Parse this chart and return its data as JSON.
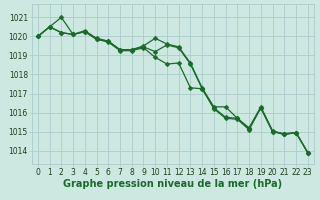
{
  "bg_color": "#cce8e0",
  "grid_color": "#aacccc",
  "line_color": "#1a6b2a",
  "marker_color": "#1a6b2a",
  "xlim": [
    -0.5,
    23.5
  ],
  "ylim": [
    1013.3,
    1021.7
  ],
  "yticks": [
    1014,
    1015,
    1016,
    1017,
    1018,
    1019,
    1020,
    1021
  ],
  "xticks": [
    0,
    1,
    2,
    3,
    4,
    5,
    6,
    7,
    8,
    9,
    10,
    11,
    12,
    13,
    14,
    15,
    16,
    17,
    18,
    19,
    20,
    21,
    22,
    23
  ],
  "xlabel": "Graphe pression niveau de la mer (hPa)",
  "xlabel_fontsize": 7,
  "tick_fontsize": 5.5,
  "marker_size": 2.5,
  "line_width": 0.9,
  "series": [
    [
      1020.0,
      1020.5,
      1021.0,
      1020.1,
      1020.3,
      1019.9,
      1019.75,
      1019.3,
      1019.3,
      1019.5,
      1019.9,
      1019.6,
      1019.45,
      1018.6,
      1017.3,
      1016.3,
      1016.3,
      1015.7,
      1015.2,
      1016.3,
      1015.05,
      1014.85,
      1014.95,
      1013.9
    ],
    [
      1020.0,
      1020.5,
      1020.2,
      1020.1,
      1020.25,
      1019.85,
      1019.75,
      1019.3,
      1019.3,
      1019.45,
      1019.2,
      1019.55,
      1019.4,
      1018.55,
      1017.25,
      1016.25,
      1015.75,
      1015.7,
      1015.15,
      1016.25,
      1015.0,
      1014.9,
      1014.95,
      1013.9
    ],
    [
      1020.0,
      1020.5,
      1020.2,
      1020.1,
      1020.25,
      1019.85,
      1019.7,
      1019.25,
      1019.25,
      1019.4,
      1018.9,
      1018.55,
      1018.6,
      1017.3,
      1017.25,
      1016.2,
      1015.7,
      1015.65,
      1015.1,
      1016.25,
      1015.0,
      1014.85,
      1014.95,
      1013.9
    ]
  ]
}
